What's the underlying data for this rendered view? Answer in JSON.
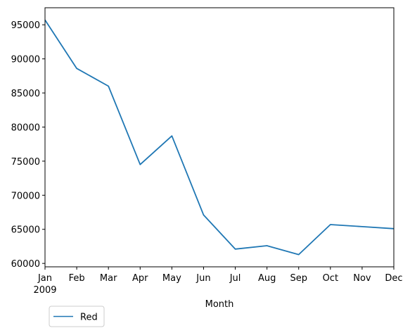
{
  "chart_data": {
    "type": "line",
    "categories": [
      "Jan",
      "Feb",
      "Mar",
      "Apr",
      "May",
      "Jun",
      "Jul",
      "Aug",
      "Sep",
      "Oct",
      "Nov",
      "Dec"
    ],
    "year_label": "2009",
    "series": [
      {
        "name": "Red",
        "color": "#1f77b4",
        "values": [
          95700,
          88600,
          86000,
          74500,
          78700,
          67100,
          62100,
          62600,
          61300,
          65700,
          65400,
          65100
        ]
      }
    ],
    "xlabel": "Month",
    "ylabel": "",
    "title": "",
    "ylim": [
      59500,
      97500
    ],
    "yticks": [
      60000,
      65000,
      70000,
      75000,
      80000,
      85000,
      90000,
      95000
    ],
    "grid": false,
    "legend_position": "lower-left, below axes"
  }
}
